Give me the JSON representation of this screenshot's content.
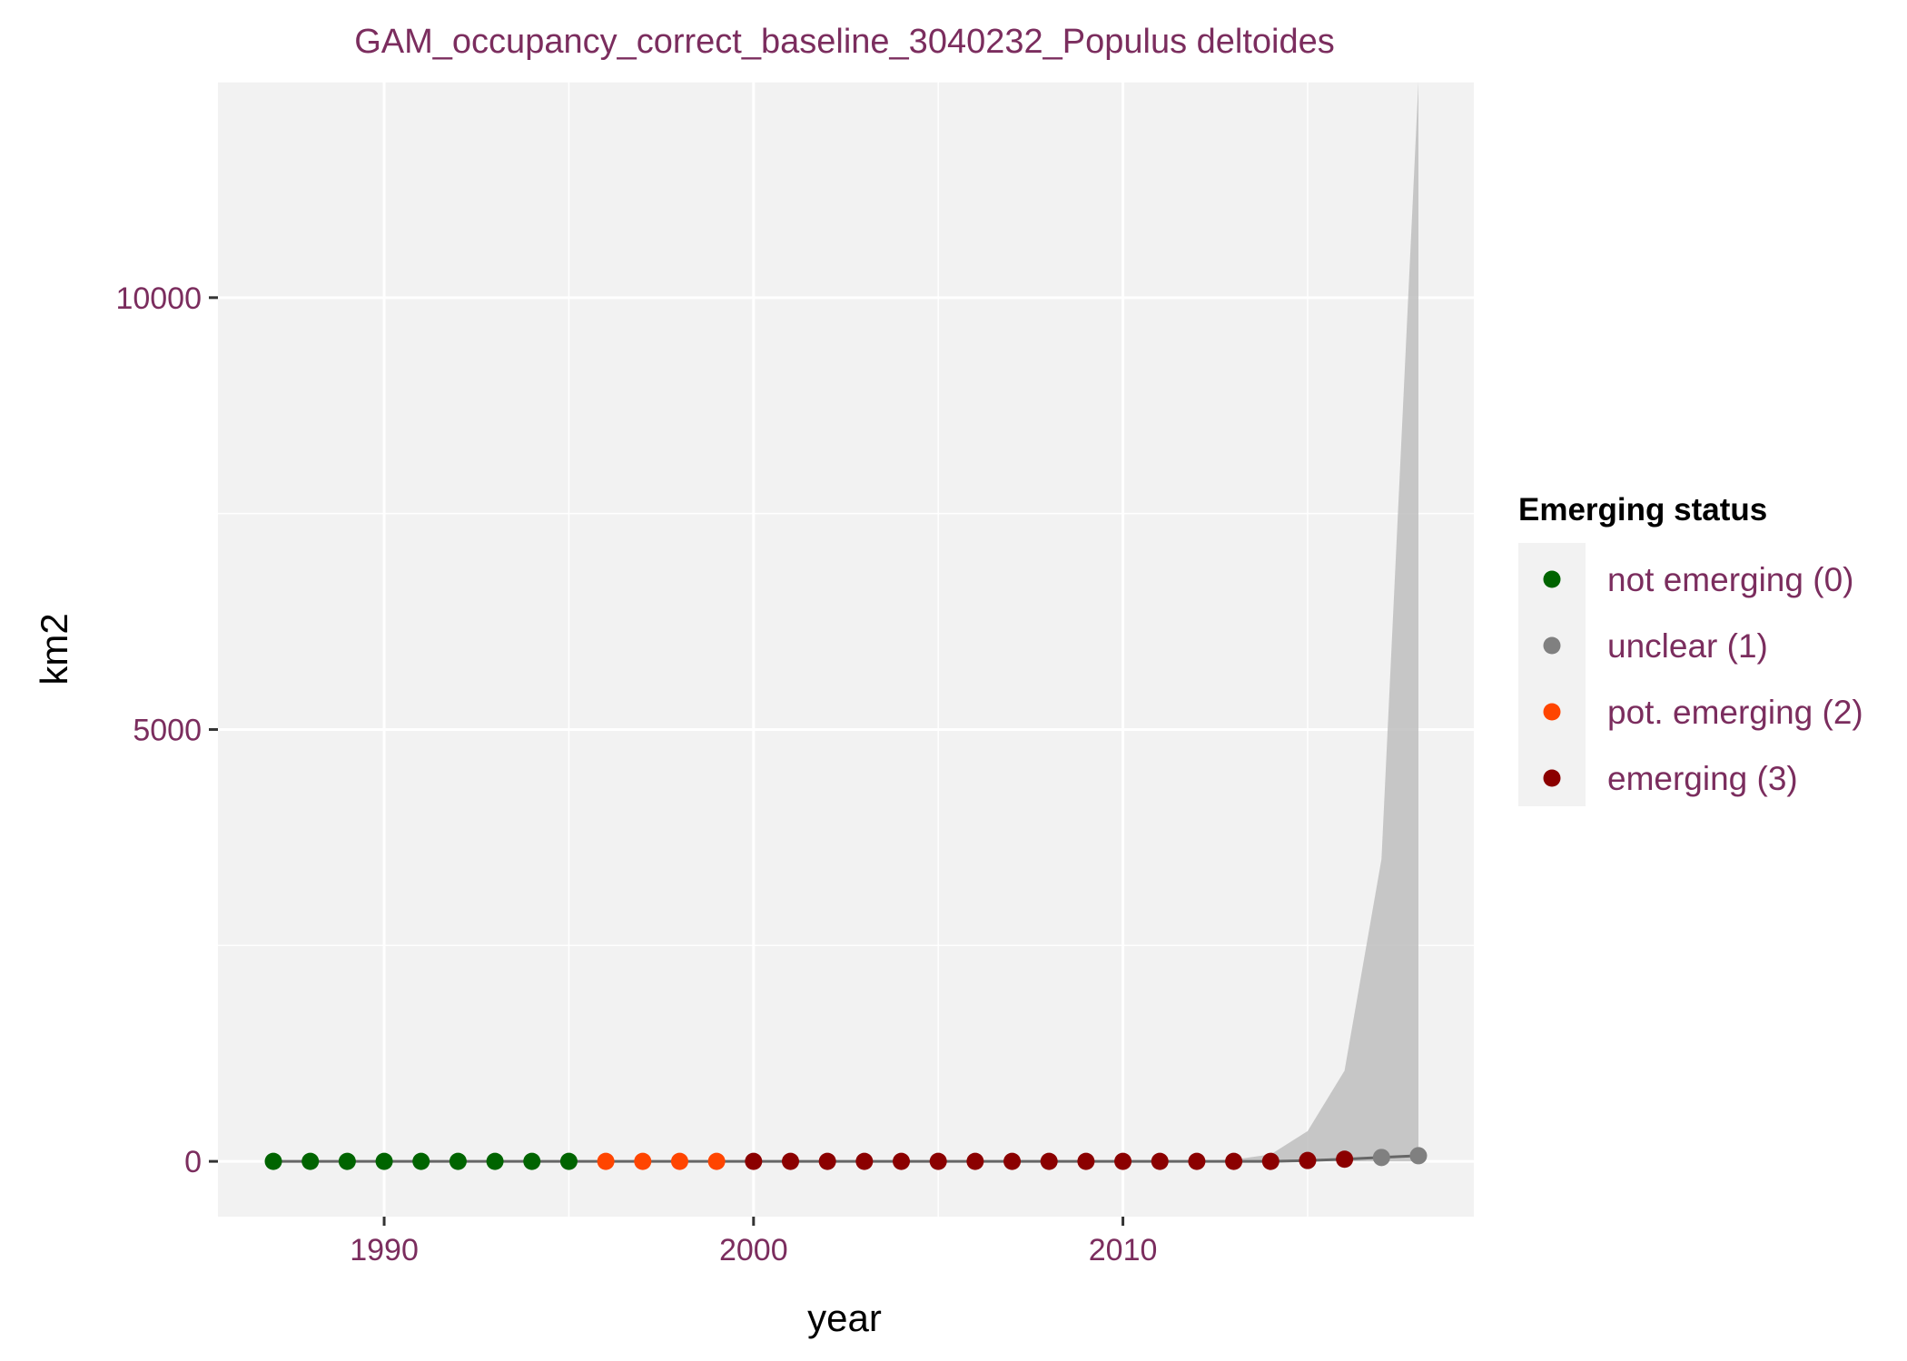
{
  "chart_data": {
    "type": "line",
    "title": "GAM_occupancy_correct_baseline_3040232_Populus deltoides",
    "xlabel": "year",
    "ylabel": "km2",
    "xlim": [
      1985.5,
      2019.5
    ],
    "ylim": [
      -640,
      12500
    ],
    "x_ticks": [
      1990,
      2000,
      2010
    ],
    "y_ticks": [
      0,
      5000,
      10000
    ],
    "x_minor": [
      1995,
      2005,
      2015
    ],
    "y_minor": [
      2500,
      7500,
      12500
    ],
    "grid": true,
    "legend": {
      "title": "Emerging status",
      "position": "right",
      "entries": [
        {
          "label": "not emerging (0)",
          "color": "#006400"
        },
        {
          "label": "unclear (1)",
          "color": "#808080"
        },
        {
          "label": "pot. emerging (2)",
          "color": "#FF4500"
        },
        {
          "label": "emerging (3)",
          "color": "#8B0000"
        }
      ]
    },
    "series": [
      {
        "x": [
          1987,
          1988,
          1989,
          1990,
          1991,
          1992,
          1993,
          1994,
          1995,
          1996,
          1997,
          1998,
          1999,
          2000,
          2001,
          2002,
          2003,
          2004,
          2005,
          2006,
          2007,
          2008,
          2009,
          2010,
          2011,
          2012,
          2013,
          2014,
          2015,
          2016,
          2017,
          2018
        ],
        "values": [
          0,
          0,
          0,
          0,
          0,
          0,
          0,
          0,
          0,
          0,
          0,
          0,
          0,
          0,
          0,
          0,
          0,
          0,
          0,
          0,
          0,
          0,
          0,
          0,
          0,
          0,
          0,
          0,
          10,
          25,
          45,
          65
        ],
        "status": [
          0,
          0,
          0,
          0,
          0,
          0,
          0,
          0,
          0,
          2,
          2,
          2,
          2,
          3,
          3,
          3,
          3,
          3,
          3,
          3,
          3,
          3,
          3,
          3,
          3,
          3,
          3,
          3,
          3,
          3,
          1,
          1
        ]
      }
    ],
    "ribbon": {
      "x": [
        1987,
        1988,
        1989,
        1990,
        1991,
        1992,
        1993,
        1994,
        1995,
        1996,
        1997,
        1998,
        1999,
        2000,
        2001,
        2002,
        2003,
        2004,
        2005,
        2006,
        2007,
        2008,
        2009,
        2010,
        2011,
        2012,
        2013,
        2014,
        2015,
        2016,
        2017,
        2018
      ],
      "lower": [
        0,
        0,
        0,
        0,
        0,
        0,
        0,
        0,
        0,
        0,
        0,
        0,
        0,
        0,
        0,
        0,
        0,
        0,
        0,
        0,
        0,
        0,
        0,
        0,
        0,
        0,
        0,
        0,
        0,
        0,
        0,
        0
      ],
      "upper": [
        0,
        0,
        0,
        0,
        0,
        0,
        0,
        0,
        0,
        0,
        0,
        0,
        0,
        0,
        0,
        0,
        0,
        0,
        0,
        0,
        0,
        0,
        0,
        0,
        2,
        5,
        20,
        80,
        350,
        1050,
        3500,
        12500
      ]
    },
    "colors": {
      "panel": "#F2F2F2",
      "grid": "#FFFFFF",
      "text": "#7B2D5E",
      "line": "#666666",
      "ribbon": "#BEBEBE"
    }
  }
}
